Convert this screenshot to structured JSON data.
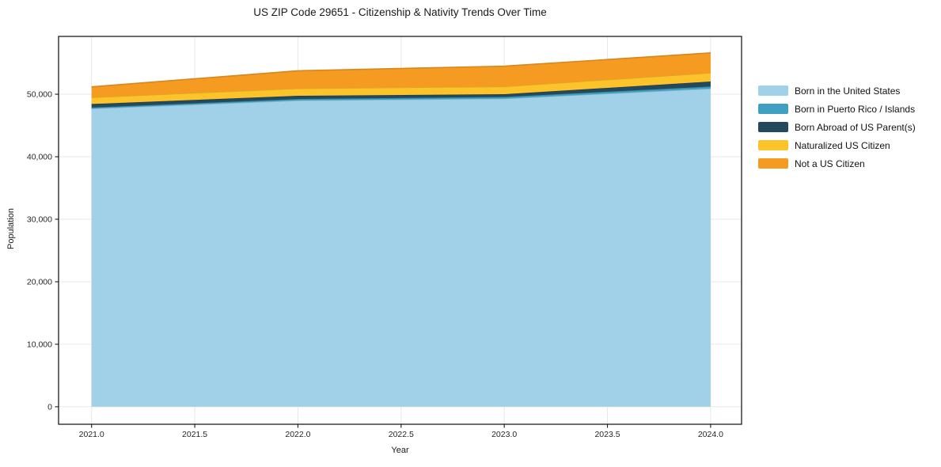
{
  "chart_data": {
    "type": "area",
    "stacked": true,
    "title": "US ZIP Code 29651 - Citizenship & Nativity Trends Over Time",
    "xlabel": "Year",
    "ylabel": "Population",
    "x": [
      2021,
      2022,
      2023,
      2024
    ],
    "series": [
      {
        "name": "Born in the United States",
        "color": "#a1d1e8",
        "values": [
          47700,
          49000,
          49300,
          50900
        ]
      },
      {
        "name": "Born in Puerto Rico / Islands",
        "color": "#3fa0c1",
        "values": [
          180,
          230,
          260,
          330
        ]
      },
      {
        "name": "Born Abroad of US Parent(s)",
        "color": "#24485c",
        "values": [
          550,
          520,
          450,
          800
        ]
      },
      {
        "name": "Naturalized US Citizen",
        "color": "#fcc32b",
        "values": [
          1060,
          1180,
          1220,
          1390
        ]
      },
      {
        "name": "Not a US Citizen",
        "color": "#f69b21",
        "values": [
          1690,
          2830,
          3260,
          3200
        ]
      }
    ],
    "totals": [
      51180,
      53760,
      54490,
      56620
    ],
    "x_ticks": [
      2021.0,
      2021.5,
      2022.0,
      2022.5,
      2023.0,
      2023.5,
      2024.0
    ],
    "x_tick_labels": [
      "2021.0",
      "2021.5",
      "2022.0",
      "2022.5",
      "2023.0",
      "2023.5",
      "2024.0"
    ],
    "y_ticks": [
      0,
      10000,
      20000,
      30000,
      40000,
      50000
    ],
    "y_tick_labels": [
      "0",
      "10,000",
      "20,000",
      "30,000",
      "40,000",
      "50,000"
    ],
    "xlim": [
      2020.84,
      2024.15
    ],
    "ylim": [
      -2800,
      59250
    ],
    "grid": true,
    "grid_color": "#e7e7e7",
    "frame_color": "#1c1c1c",
    "tick_label_color": "#262626",
    "legend_position": "right"
  }
}
